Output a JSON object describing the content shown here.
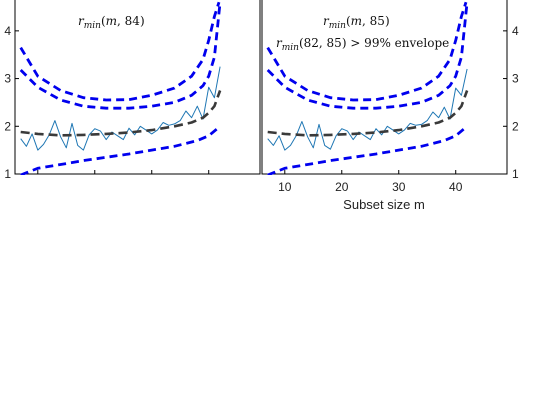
{
  "chart_data": [
    {
      "type": "line",
      "annotations": [
        "r_min(m, 84)"
      ],
      "xlabel": "",
      "ylabel": "",
      "xlim": [
        6,
        49
      ],
      "ylim": [
        1,
        4.5
      ],
      "yticks": [
        1,
        2,
        3,
        4
      ],
      "xticks": [
        10,
        20,
        30,
        40
      ],
      "show_xtick_labels": false,
      "ytick_side": "left",
      "grid": false,
      "series": [
        {
          "role": "observed",
          "style": "solid",
          "color": "#1f77b4",
          "x": [
            7,
            8,
            9,
            10,
            11,
            12,
            13,
            14,
            15,
            16,
            17,
            18,
            19,
            20,
            21,
            22,
            23,
            24,
            25,
            26,
            27,
            28,
            29,
            30,
            31,
            32,
            33,
            34,
            35,
            36,
            37,
            38,
            39,
            40,
            41,
            42
          ],
          "y": [
            1.74,
            1.58,
            1.84,
            1.5,
            1.62,
            1.82,
            2.12,
            1.78,
            1.55,
            2.06,
            1.6,
            1.5,
            1.82,
            1.95,
            1.9,
            1.72,
            1.88,
            1.8,
            1.72,
            1.96,
            1.82,
            2.0,
            1.92,
            1.84,
            1.92,
            2.08,
            2.02,
            2.05,
            2.12,
            2.32,
            2.18,
            2.42,
            2.15,
            2.82,
            2.6,
            3.25
          ]
        },
        {
          "role": "median",
          "style": "dashed",
          "color": "#3a3a3a",
          "x": [
            7,
            10,
            14,
            18,
            22,
            26,
            30,
            34,
            37,
            39,
            40,
            41,
            42
          ],
          "y": [
            1.88,
            1.84,
            1.81,
            1.82,
            1.84,
            1.87,
            1.92,
            2.0,
            2.08,
            2.18,
            2.28,
            2.42,
            2.75
          ]
        },
        {
          "role": "envelope",
          "style": "dashed",
          "color": "#0000ee",
          "x": [
            7,
            10,
            14,
            18,
            22,
            26,
            30,
            34,
            38,
            40,
            41,
            42
          ],
          "y": [
            0.98,
            1.12,
            1.2,
            1.28,
            1.35,
            1.42,
            1.5,
            1.58,
            1.7,
            1.8,
            1.9,
            2.0
          ]
        },
        {
          "role": "envelope",
          "style": "dashed",
          "color": "#0000ee",
          "x": [
            7,
            10,
            14,
            18,
            22,
            26,
            30,
            34,
            37,
            39,
            40,
            41,
            42
          ],
          "y": [
            3.18,
            2.82,
            2.55,
            2.42,
            2.38,
            2.38,
            2.42,
            2.5,
            2.65,
            2.85,
            3.05,
            3.45,
            4.6
          ]
        },
        {
          "role": "envelope",
          "style": "dashed",
          "color": "#0000ee",
          "x": [
            7,
            10,
            14,
            18,
            22,
            26,
            30,
            34,
            37,
            39,
            40,
            41,
            41.8
          ],
          "y": [
            3.65,
            3.05,
            2.75,
            2.6,
            2.55,
            2.56,
            2.65,
            2.8,
            3.05,
            3.4,
            3.8,
            4.3,
            4.6
          ]
        }
      ]
    },
    {
      "type": "line",
      "annotations": [
        "r_min(m, 85)",
        "r_min(82, 85) > 99% envelope"
      ],
      "xlabel": "Subset size m",
      "ylabel": "",
      "xlim": [
        6,
        49
      ],
      "ylim": [
        1,
        4.5
      ],
      "yticks": [
        1,
        2,
        3,
        4
      ],
      "xticks": [
        10,
        20,
        30,
        40
      ],
      "show_xtick_labels": true,
      "ytick_side": "right",
      "grid": false,
      "series": [
        {
          "role": "observed",
          "style": "solid",
          "color": "#1f77b4",
          "x": [
            7,
            8,
            9,
            10,
            11,
            12,
            13,
            14,
            15,
            16,
            17,
            18,
            19,
            20,
            21,
            22,
            23,
            24,
            25,
            26,
            27,
            28,
            29,
            30,
            31,
            32,
            33,
            34,
            35,
            36,
            37,
            38,
            39,
            40,
            41,
            42
          ],
          "y": [
            1.74,
            1.6,
            1.8,
            1.5,
            1.6,
            1.8,
            2.1,
            1.78,
            1.55,
            2.04,
            1.6,
            1.52,
            1.8,
            1.95,
            1.9,
            1.72,
            1.88,
            1.8,
            1.72,
            1.95,
            1.82,
            2.0,
            1.92,
            1.84,
            1.92,
            2.06,
            2.02,
            2.04,
            2.12,
            2.3,
            2.18,
            2.4,
            2.15,
            2.8,
            2.65,
            3.2
          ]
        },
        {
          "role": "median",
          "style": "dashed",
          "color": "#3a3a3a",
          "x": [
            7,
            10,
            14,
            18,
            22,
            26,
            30,
            34,
            37,
            39,
            40,
            41,
            42
          ],
          "y": [
            1.88,
            1.84,
            1.81,
            1.82,
            1.84,
            1.87,
            1.92,
            2.0,
            2.08,
            2.18,
            2.28,
            2.42,
            2.75
          ]
        },
        {
          "role": "envelope",
          "style": "dashed",
          "color": "#0000ee",
          "x": [
            7,
            10,
            14,
            18,
            22,
            26,
            30,
            34,
            38,
            40,
            41,
            42
          ],
          "y": [
            0.98,
            1.12,
            1.2,
            1.28,
            1.35,
            1.42,
            1.5,
            1.58,
            1.7,
            1.8,
            1.9,
            2.0
          ]
        },
        {
          "role": "envelope",
          "style": "dashed",
          "color": "#0000ee",
          "x": [
            7,
            10,
            14,
            18,
            22,
            26,
            30,
            34,
            37,
            39,
            40,
            41,
            42
          ],
          "y": [
            3.18,
            2.82,
            2.55,
            2.42,
            2.38,
            2.38,
            2.42,
            2.5,
            2.65,
            2.85,
            3.05,
            3.45,
            4.6
          ]
        },
        {
          "role": "envelope",
          "style": "dashed",
          "color": "#0000ee",
          "x": [
            7,
            10,
            14,
            18,
            22,
            26,
            30,
            34,
            37,
            39,
            40,
            41,
            41.8
          ],
          "y": [
            3.65,
            3.05,
            2.75,
            2.6,
            2.55,
            2.56,
            2.65,
            2.8,
            3.05,
            3.4,
            3.8,
            4.3,
            4.6
          ]
        }
      ]
    }
  ]
}
